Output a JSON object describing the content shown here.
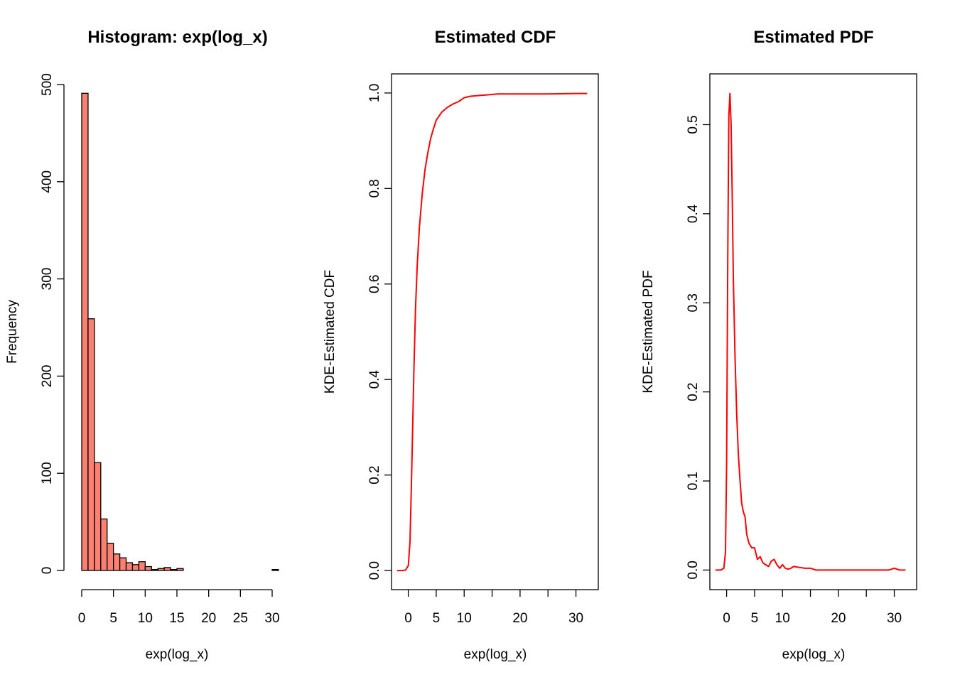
{
  "colors": {
    "bar_fill": "#fa8072",
    "curve": "#ff0000",
    "axis": "#000000"
  },
  "chart_data": [
    {
      "type": "bar",
      "title": "Histogram: exp(log_x)",
      "xlabel": "exp(log_x)",
      "ylabel": "Frequency",
      "bin_width": 1,
      "bin_starts": [
        0,
        1,
        2,
        3,
        4,
        5,
        6,
        7,
        8,
        9,
        10,
        11,
        12,
        13,
        14,
        15,
        16,
        17,
        18,
        19,
        20,
        21,
        22,
        23,
        24,
        25,
        26,
        27,
        28,
        29,
        30
      ],
      "values": [
        491,
        259,
        111,
        53,
        28,
        17,
        13,
        8,
        6,
        9,
        4,
        1,
        2,
        3,
        1,
        2,
        0,
        0,
        0,
        0,
        0,
        0,
        0,
        0,
        0,
        0,
        0,
        0,
        0,
        0,
        1
      ],
      "xlim": [
        0,
        31
      ],
      "ylim": [
        0,
        500
      ],
      "xticks": [
        0,
        5,
        10,
        15,
        20,
        25,
        30
      ],
      "yticks": [
        0,
        100,
        200,
        300,
        400,
        500
      ],
      "grid": false,
      "frame": false
    },
    {
      "type": "line",
      "title": "Estimated CDF",
      "xlabel": "exp(log_x)",
      "ylabel": "KDE-Estimated CDF",
      "x": [
        -2,
        -1,
        -0.5,
        0,
        0.3,
        0.6,
        1,
        1.3,
        1.6,
        2,
        2.5,
        3,
        3.5,
        4,
        4.5,
        5,
        6,
        7,
        8,
        9,
        10,
        11,
        12,
        14,
        16,
        20,
        25,
        30,
        32
      ],
      "y": [
        0,
        0,
        0.001,
        0.01,
        0.06,
        0.2,
        0.42,
        0.55,
        0.64,
        0.72,
        0.79,
        0.84,
        0.875,
        0.905,
        0.925,
        0.943,
        0.96,
        0.97,
        0.977,
        0.982,
        0.99,
        0.993,
        0.994,
        0.996,
        0.998,
        0.998,
        0.998,
        0.999,
        0.999
      ],
      "xlim": [
        -3,
        34
      ],
      "ylim": [
        -0.04,
        1.04
      ],
      "xticks": [
        0,
        5,
        10,
        20,
        30
      ],
      "xticks_minor": [
        15,
        25
      ],
      "yticks": [
        0,
        0.2,
        0.4,
        0.6,
        0.8,
        1
      ],
      "ytick_labels": [
        "0.0",
        "0.2",
        "0.4",
        "0.6",
        "0.8",
        "1.0"
      ],
      "series_color": "#ff0000",
      "grid": false,
      "frame": true
    },
    {
      "type": "line",
      "title": "Estimated PDF",
      "xlabel": "exp(log_x)",
      "ylabel": "KDE-Estimated PDF",
      "x": [
        -2,
        -1,
        -0.5,
        -0.2,
        0,
        0.2,
        0.4,
        0.6,
        0.8,
        1,
        1.2,
        1.5,
        1.8,
        2.1,
        2.4,
        2.7,
        3,
        3.3,
        3.6,
        4,
        4.5,
        5,
        5.5,
        6,
        6.5,
        7,
        7.5,
        8,
        8.5,
        9,
        9.5,
        10,
        10.5,
        11,
        11.5,
        12,
        13,
        14,
        15,
        16,
        20,
        25,
        29,
        30,
        31,
        32
      ],
      "y": [
        0,
        0,
        0.002,
        0.02,
        0.12,
        0.35,
        0.51,
        0.535,
        0.5,
        0.42,
        0.33,
        0.24,
        0.175,
        0.13,
        0.1,
        0.075,
        0.065,
        0.06,
        0.04,
        0.03,
        0.025,
        0.025,
        0.012,
        0.015,
        0.008,
        0.006,
        0.004,
        0.01,
        0.012,
        0.006,
        0.002,
        0.006,
        0.002,
        0.001,
        0.002,
        0.004,
        0.003,
        0.002,
        0.002,
        0,
        0,
        0,
        0,
        0.002,
        0,
        0
      ],
      "xlim": [
        -3,
        34
      ],
      "ylim": [
        -0.022,
        0.557
      ],
      "xticks": [
        0,
        5,
        10,
        20,
        30
      ],
      "xticks_minor": [
        15,
        25
      ],
      "yticks": [
        0,
        0.1,
        0.2,
        0.3,
        0.4,
        0.5
      ],
      "ytick_labels": [
        "0.0",
        "0.1",
        "0.2",
        "0.3",
        "0.4",
        "0.5"
      ],
      "series_color": "#ff0000",
      "grid": false,
      "frame": true
    }
  ]
}
